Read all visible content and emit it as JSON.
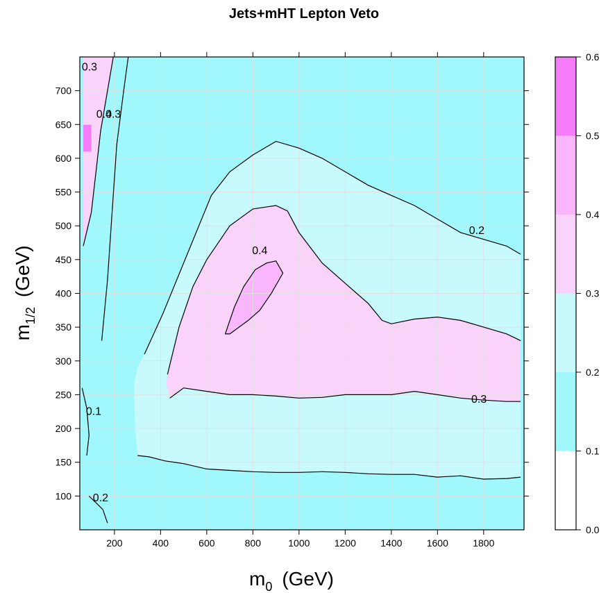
{
  "chart_data": {
    "type": "heatmap",
    "title": "Jets+mHT Lepton Veto",
    "xlabel": {
      "main": "m",
      "sub": "0",
      "unit": "(GeV)"
    },
    "ylabel": {
      "main": "m",
      "sub": "1/2",
      "unit": "(GeV)"
    },
    "xlim": [
      50,
      1975
    ],
    "ylim": [
      50,
      750
    ],
    "xticks": [
      200,
      400,
      600,
      800,
      1000,
      1200,
      1400,
      1600,
      1800
    ],
    "yticks": [
      100,
      150,
      200,
      250,
      300,
      350,
      400,
      450,
      500,
      550,
      600,
      650,
      700
    ],
    "colorbar": {
      "ticks": [
        0.0,
        0.1,
        0.2,
        0.3,
        0.4,
        0.5,
        0.6
      ],
      "levels": [
        {
          "range": [
            0.0,
            0.1
          ],
          "color": "#ffffff"
        },
        {
          "range": [
            0.1,
            0.2
          ],
          "color": "#a0f8fc"
        },
        {
          "range": [
            0.2,
            0.3
          ],
          "color": "#c8fafd"
        },
        {
          "range": [
            0.3,
            0.4
          ],
          "color": "#fad3fb"
        },
        {
          "range": [
            0.4,
            0.5
          ],
          "color": "#fab6fc"
        },
        {
          "range": [
            0.5,
            0.6
          ],
          "color": "#f57cf9"
        }
      ]
    },
    "regions": [
      {
        "level": 0.2,
        "color": "#c8fafd",
        "points": [
          [
            330,
            310
          ],
          [
            410,
            370
          ],
          [
            530,
            470
          ],
          [
            620,
            545
          ],
          [
            700,
            580
          ],
          [
            800,
            605
          ],
          [
            900,
            625
          ],
          [
            1000,
            615
          ],
          [
            1100,
            600
          ],
          [
            1200,
            580
          ],
          [
            1300,
            560
          ],
          [
            1400,
            545
          ],
          [
            1500,
            530
          ],
          [
            1600,
            510
          ],
          [
            1700,
            490
          ],
          [
            1800,
            480
          ],
          [
            1900,
            470
          ],
          [
            1960,
            458
          ],
          [
            1960,
            128
          ],
          [
            1900,
            126
          ],
          [
            1800,
            125
          ],
          [
            1700,
            130
          ],
          [
            1600,
            128
          ],
          [
            1500,
            132
          ],
          [
            1400,
            132
          ],
          [
            1300,
            133
          ],
          [
            1200,
            135
          ],
          [
            1100,
            136
          ],
          [
            1000,
            135
          ],
          [
            900,
            135
          ],
          [
            800,
            136
          ],
          [
            700,
            138
          ],
          [
            600,
            140
          ],
          [
            500,
            148
          ],
          [
            420,
            152
          ],
          [
            350,
            158
          ],
          [
            300,
            160
          ],
          [
            290,
            200
          ],
          [
            285,
            265
          ],
          [
            300,
            290
          ]
        ]
      },
      {
        "level": 0.3,
        "color": "#fad3fb",
        "points": [
          [
            430,
            280
          ],
          [
            480,
            350
          ],
          [
            540,
            410
          ],
          [
            600,
            450
          ],
          [
            700,
            500
          ],
          [
            800,
            525
          ],
          [
            900,
            530
          ],
          [
            950,
            522
          ],
          [
            1000,
            490
          ],
          [
            1100,
            445
          ],
          [
            1200,
            415
          ],
          [
            1300,
            385
          ],
          [
            1360,
            360
          ],
          [
            1400,
            355
          ],
          [
            1500,
            362
          ],
          [
            1600,
            365
          ],
          [
            1700,
            360
          ],
          [
            1800,
            350
          ],
          [
            1900,
            340
          ],
          [
            1960,
            330
          ],
          [
            1960,
            240
          ],
          [
            1900,
            240
          ],
          [
            1800,
            242
          ],
          [
            1700,
            245
          ],
          [
            1600,
            250
          ],
          [
            1500,
            255
          ],
          [
            1400,
            250
          ],
          [
            1300,
            250
          ],
          [
            1200,
            250
          ],
          [
            1100,
            246
          ],
          [
            1000,
            245
          ],
          [
            900,
            248
          ],
          [
            800,
            250
          ],
          [
            700,
            250
          ],
          [
            600,
            255
          ],
          [
            500,
            260
          ],
          [
            440,
            245
          ],
          [
            425,
            265
          ]
        ]
      },
      {
        "level": 0.4,
        "color": "#fab6fc",
        "points": [
          [
            680,
            340
          ],
          [
            720,
            380
          ],
          [
            760,
            410
          ],
          [
            810,
            435
          ],
          [
            860,
            445
          ],
          [
            900,
            448
          ],
          [
            930,
            430
          ],
          [
            880,
            400
          ],
          [
            830,
            375
          ],
          [
            780,
            360
          ],
          [
            740,
            350
          ],
          [
            700,
            340
          ]
        ]
      },
      {
        "level": 0.3,
        "color": "#fad3fb",
        "points": [
          [
            65,
            470
          ],
          [
            100,
            520
          ],
          [
            120,
            580
          ],
          [
            140,
            640
          ],
          [
            170,
            700
          ],
          [
            195,
            750
          ],
          [
            65,
            750
          ]
        ]
      },
      {
        "level": 0.5,
        "color": "#f57cf9",
        "points": [
          [
            65,
            610
          ],
          [
            100,
            610
          ],
          [
            100,
            650
          ],
          [
            65,
            650
          ]
        ]
      }
    ],
    "contours": [
      {
        "level": 0.2,
        "points": [
          [
            330,
            310
          ],
          [
            410,
            370
          ],
          [
            530,
            470
          ],
          [
            620,
            545
          ],
          [
            700,
            580
          ],
          [
            800,
            605
          ],
          [
            900,
            625
          ],
          [
            1000,
            615
          ],
          [
            1100,
            600
          ],
          [
            1200,
            580
          ],
          [
            1300,
            560
          ],
          [
            1400,
            545
          ],
          [
            1500,
            530
          ],
          [
            1600,
            510
          ],
          [
            1700,
            490
          ],
          [
            1800,
            480
          ],
          [
            1900,
            470
          ],
          [
            1960,
            458
          ]
        ]
      },
      {
        "level": 0.2,
        "points": [
          [
            300,
            160
          ],
          [
            350,
            158
          ],
          [
            420,
            152
          ],
          [
            500,
            148
          ],
          [
            600,
            140
          ],
          [
            700,
            138
          ],
          [
            800,
            136
          ],
          [
            900,
            135
          ],
          [
            1000,
            135
          ],
          [
            1100,
            136
          ],
          [
            1200,
            135
          ],
          [
            1300,
            133
          ],
          [
            1400,
            132
          ],
          [
            1500,
            132
          ],
          [
            1600,
            128
          ],
          [
            1700,
            130
          ],
          [
            1800,
            125
          ],
          [
            1900,
            126
          ],
          [
            1960,
            128
          ]
        ]
      },
      {
        "level": 0.3,
        "points": [
          [
            430,
            280
          ],
          [
            480,
            350
          ],
          [
            540,
            410
          ],
          [
            600,
            450
          ],
          [
            700,
            500
          ],
          [
            800,
            525
          ],
          [
            900,
            530
          ],
          [
            950,
            522
          ],
          [
            1000,
            490
          ],
          [
            1100,
            445
          ],
          [
            1200,
            415
          ],
          [
            1300,
            385
          ],
          [
            1360,
            360
          ],
          [
            1400,
            355
          ],
          [
            1500,
            362
          ],
          [
            1600,
            365
          ],
          [
            1700,
            360
          ],
          [
            1800,
            350
          ],
          [
            1900,
            340
          ],
          [
            1960,
            330
          ]
        ]
      },
      {
        "level": 0.3,
        "points": [
          [
            440,
            245
          ],
          [
            500,
            260
          ],
          [
            600,
            255
          ],
          [
            700,
            250
          ],
          [
            800,
            250
          ],
          [
            900,
            248
          ],
          [
            1000,
            245
          ],
          [
            1100,
            246
          ],
          [
            1200,
            250
          ],
          [
            1300,
            250
          ],
          [
            1400,
            250
          ],
          [
            1500,
            255
          ],
          [
            1600,
            250
          ],
          [
            1700,
            245
          ],
          [
            1800,
            242
          ],
          [
            1900,
            240
          ],
          [
            1960,
            240
          ]
        ]
      },
      {
        "level": 0.4,
        "points": [
          [
            680,
            340
          ],
          [
            720,
            380
          ],
          [
            760,
            410
          ],
          [
            810,
            435
          ],
          [
            860,
            445
          ],
          [
            900,
            448
          ],
          [
            930,
            430
          ],
          [
            880,
            400
          ],
          [
            830,
            375
          ],
          [
            780,
            360
          ],
          [
            740,
            350
          ],
          [
            700,
            340
          ],
          [
            680,
            340
          ]
        ]
      },
      {
        "level": 0.3,
        "points": [
          [
            65,
            470
          ],
          [
            100,
            520
          ],
          [
            120,
            580
          ],
          [
            140,
            640
          ],
          [
            170,
            700
          ],
          [
            195,
            750
          ]
        ]
      },
      {
        "level": 0.2,
        "points": [
          [
            145,
            330
          ],
          [
            170,
            420
          ],
          [
            190,
            520
          ],
          [
            210,
            620
          ],
          [
            240,
            700
          ],
          [
            260,
            750
          ]
        ]
      },
      {
        "level": 0.1,
        "points": [
          [
            60,
            260
          ],
          [
            80,
            230
          ],
          [
            90,
            190
          ],
          [
            80,
            160
          ]
        ]
      },
      {
        "level": 0.2,
        "points": [
          [
            90,
            100
          ],
          [
            120,
            90
          ],
          [
            150,
            80
          ],
          [
            170,
            60
          ]
        ]
      }
    ],
    "contour_labels": [
      {
        "text": "0.2",
        "x": 1770,
        "y": 488
      },
      {
        "text": "0.4",
        "x": 830,
        "y": 458
      },
      {
        "text": "0.3",
        "x": 1780,
        "y": 238
      },
      {
        "text": "0.1",
        "x": 110,
        "y": 220
      },
      {
        "text": "0.2",
        "x": 140,
        "y": 92
      },
      {
        "text": "0.4",
        "x": 155,
        "y": 660
      },
      {
        "text": "0.3",
        "x": 195,
        "y": 660
      },
      {
        "text": "0.3",
        "x": 92,
        "y": 730
      }
    ],
    "grid": true,
    "colors": {
      "background": "#a0f8fc",
      "contour": "#000000",
      "grid": "#e0e0e0"
    }
  }
}
